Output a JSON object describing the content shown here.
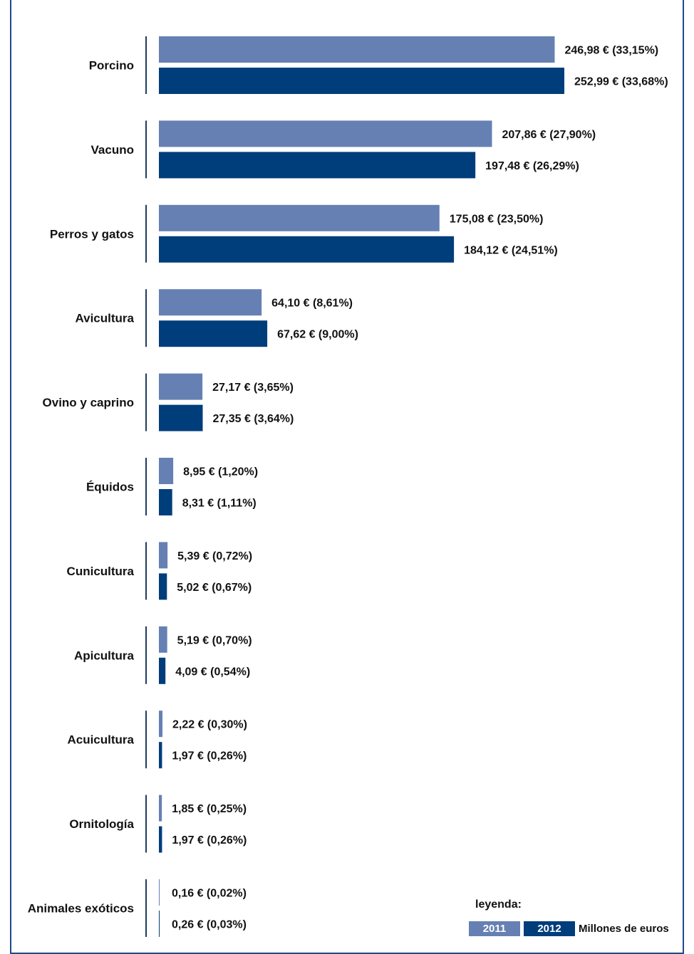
{
  "chart_data": {
    "type": "bar",
    "orientation": "horizontal",
    "categories": [
      "Porcino",
      "Vacuno",
      "Perros y gatos",
      "Avicultura",
      "Ovino y caprino",
      "Équidos",
      "Cunicultura",
      "Apicultura",
      "Acuicultura",
      "Ornitología",
      "Animales exóticos"
    ],
    "series": [
      {
        "name": "2011",
        "color": "#6680b3",
        "values": [
          246.98,
          207.86,
          175.08,
          64.1,
          27.17,
          8.95,
          5.39,
          5.19,
          2.22,
          1.85,
          0.16
        ],
        "labels": [
          "246,98 € (33,15%)",
          "207,86 € (27,90%)",
          "175,08 € (23,50%)",
          "64,10 € (8,61%)",
          "27,17 € (3,65%)",
          "8,95 € (1,20%)",
          "5,39 € (0,72%)",
          "5,19 € (0,70%)",
          "2,22 € (0,30%)",
          "1,85 € (0,25%)",
          "0,16 € (0,02%)"
        ]
      },
      {
        "name": "2012",
        "color": "#003d7b",
        "values": [
          252.99,
          197.48,
          184.12,
          67.62,
          27.35,
          8.31,
          5.02,
          4.09,
          1.97,
          1.97,
          0.26
        ],
        "labels": [
          "252,99 € (33,68%)",
          "197,48 € (26,29%)",
          "184,12 € (24,51%)",
          "67,62 € (9,00%)",
          "27,35 € (3,64%)",
          "8,31 € (1,11%)",
          "5,02 € (0,67%)",
          "4,09 € (0,54%)",
          "1,97 € (0,26%)",
          "1,97 € (0,26%)",
          "0,26 € (0,03%)"
        ]
      }
    ],
    "xlim": [
      0,
      252.99
    ],
    "grid": false
  },
  "legend": {
    "title": "leyenda:",
    "items": [
      "2011",
      "2012"
    ],
    "units": "Millones de euros",
    "placement": "bottom-right"
  }
}
